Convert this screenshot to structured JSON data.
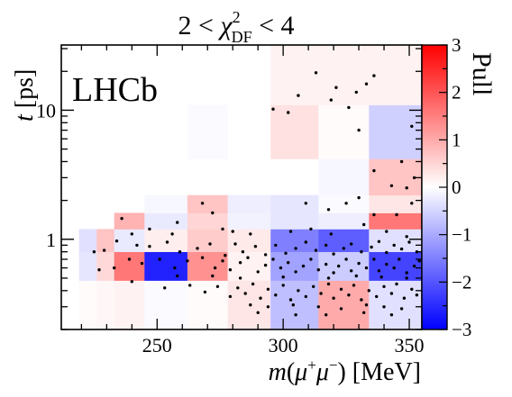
{
  "chart_data": {
    "type": "heatmap",
    "title_prefix": "2 < ",
    "title_chi": "χ",
    "title_sup": "2",
    "title_sub": "DF",
    "title_suffix": " < 4",
    "xlabel_m": "m",
    "xlabel_open": "(",
    "xlabel_mu1": "μ",
    "xlabel_plus": "+",
    "xlabel_mu2": "μ",
    "xlabel_minus": "−",
    "xlabel_rest": ") [MeV]",
    "ylabel_t": "t",
    "ylabel_rest": " [ps]",
    "colorbar_label": "Pull",
    "watermark": "LHCb",
    "xlim": [
      212,
      355
    ],
    "ylim_log": [
      0.2,
      32
    ],
    "xticks": [
      {
        "v": 250,
        "label": "250"
      },
      {
        "v": 300,
        "label": "300"
      },
      {
        "v": 350,
        "label": "350"
      }
    ],
    "yticks": [
      {
        "v": 1,
        "label": "1"
      },
      {
        "v": 10,
        "label": "10"
      }
    ],
    "colorbar_range": [
      -3,
      3
    ],
    "colorbar_ticks": [
      {
        "v": 3,
        "label": "3"
      },
      {
        "v": 2,
        "label": "2"
      },
      {
        "v": 1,
        "label": "1"
      },
      {
        "v": 0,
        "label": "0"
      },
      {
        "v": -1,
        "label": "−1"
      },
      {
        "v": -2,
        "label": "−2"
      },
      {
        "v": -3,
        "label": "−3"
      }
    ],
    "cells": [
      {
        "x0": 219,
        "x1": 226,
        "y0": 0.2,
        "y1": 0.48,
        "v": 0.05
      },
      {
        "x0": 226,
        "x1": 233,
        "y0": 0.2,
        "y1": 0.48,
        "v": 0.1
      },
      {
        "x0": 233,
        "x1": 245,
        "y0": 0.2,
        "y1": 0.48,
        "v": 0.15
      },
      {
        "x0": 245,
        "x1": 262,
        "y0": 0.2,
        "y1": 0.48,
        "v": -0.05
      },
      {
        "x0": 262,
        "x1": 278,
        "y0": 0.2,
        "y1": 0.48,
        "v": 0.05
      },
      {
        "x0": 278,
        "x1": 295,
        "y0": 0.2,
        "y1": 0.48,
        "v": 0.3
      },
      {
        "x0": 295,
        "x1": 314,
        "y0": 0.2,
        "y1": 0.48,
        "v": -0.75
      },
      {
        "x0": 314,
        "x1": 334,
        "y0": 0.2,
        "y1": 0.48,
        "v": 1.0
      },
      {
        "x0": 334,
        "x1": 355,
        "y0": 0.2,
        "y1": 0.48,
        "v": -0.35
      },
      {
        "x0": 219,
        "x1": 226,
        "y0": 0.48,
        "y1": 0.8,
        "v": -0.3
      },
      {
        "x0": 226,
        "x1": 233,
        "y0": 0.48,
        "y1": 0.8,
        "v": 0.45
      },
      {
        "x0": 233,
        "x1": 245,
        "y0": 0.48,
        "y1": 0.8,
        "v": 1.6
      },
      {
        "x0": 245,
        "x1": 262,
        "y0": 0.48,
        "y1": 0.8,
        "v": -2.6
      },
      {
        "x0": 262,
        "x1": 278,
        "y0": 0.48,
        "y1": 0.8,
        "v": 1.3
      },
      {
        "x0": 278,
        "x1": 295,
        "y0": 0.48,
        "y1": 0.8,
        "v": 0.15
      },
      {
        "x0": 295,
        "x1": 314,
        "y0": 0.48,
        "y1": 0.8,
        "v": -1.1
      },
      {
        "x0": 314,
        "x1": 334,
        "y0": 0.48,
        "y1": 0.8,
        "v": -0.6
      },
      {
        "x0": 334,
        "x1": 355,
        "y0": 0.48,
        "y1": 0.8,
        "v": -2.2
      },
      {
        "x0": 219,
        "x1": 226,
        "y0": 0.8,
        "y1": 1.2,
        "v": -0.35
      },
      {
        "x0": 226,
        "x1": 233,
        "y0": 0.8,
        "y1": 1.2,
        "v": 0.7
      },
      {
        "x0": 233,
        "x1": 245,
        "y0": 0.8,
        "y1": 1.2,
        "v": -0.25
      },
      {
        "x0": 245,
        "x1": 262,
        "y0": 0.8,
        "y1": 1.2,
        "v": 0.2
      },
      {
        "x0": 262,
        "x1": 278,
        "y0": 0.8,
        "y1": 1.2,
        "v": 0.6
      },
      {
        "x0": 278,
        "x1": 295,
        "y0": 0.8,
        "y1": 1.2,
        "v": 0.25
      },
      {
        "x0": 295,
        "x1": 314,
        "y0": 0.8,
        "y1": 1.2,
        "v": -1.5
      },
      {
        "x0": 314,
        "x1": 334,
        "y0": 0.8,
        "y1": 1.2,
        "v": -1.9
      },
      {
        "x0": 334,
        "x1": 355,
        "y0": 0.8,
        "y1": 1.2,
        "v": -0.35
      },
      {
        "x0": 233,
        "x1": 245,
        "y0": 1.2,
        "y1": 1.6,
        "v": 0.9
      },
      {
        "x0": 245,
        "x1": 262,
        "y0": 1.2,
        "y1": 1.6,
        "v": -0.25
      },
      {
        "x0": 262,
        "x1": 278,
        "y0": 1.2,
        "y1": 1.6,
        "v": 0.5
      },
      {
        "x0": 278,
        "x1": 295,
        "y0": 1.2,
        "y1": 1.6,
        "v": -0.15
      },
      {
        "x0": 295,
        "x1": 314,
        "y0": 1.2,
        "y1": 1.6,
        "v": -0.3
      },
      {
        "x0": 314,
        "x1": 334,
        "y0": 1.2,
        "y1": 1.6,
        "v": -0.2
      },
      {
        "x0": 334,
        "x1": 355,
        "y0": 1.2,
        "y1": 1.6,
        "v": 1.6
      },
      {
        "x0": 245,
        "x1": 262,
        "y0": 1.6,
        "y1": 2.2,
        "v": -0.1
      },
      {
        "x0": 262,
        "x1": 278,
        "y0": 1.6,
        "y1": 2.2,
        "v": 0.7
      },
      {
        "x0": 278,
        "x1": 295,
        "y0": 1.6,
        "y1": 2.2,
        "v": -0.2
      },
      {
        "x0": 295,
        "x1": 314,
        "y0": 1.6,
        "y1": 2.2,
        "v": -0.3
      },
      {
        "x0": 314,
        "x1": 334,
        "y0": 1.6,
        "y1": 2.2,
        "v": -0.05
      },
      {
        "x0": 334,
        "x1": 355,
        "y0": 1.6,
        "y1": 2.2,
        "v": 0.3
      },
      {
        "x0": 314,
        "x1": 334,
        "y0": 2.2,
        "y1": 4.2,
        "v": -0.1
      },
      {
        "x0": 334,
        "x1": 355,
        "y0": 2.2,
        "y1": 4.2,
        "v": 0.7
      },
      {
        "x0": 262,
        "x1": 278,
        "y0": 4.2,
        "y1": 11,
        "v": -0.05
      },
      {
        "x0": 295,
        "x1": 314,
        "y0": 4.2,
        "y1": 11,
        "v": 0.35
      },
      {
        "x0": 314,
        "x1": 334,
        "y0": 4.2,
        "y1": 11,
        "v": 0.05
      },
      {
        "x0": 334,
        "x1": 355,
        "y0": 4.2,
        "y1": 11,
        "v": -0.55
      },
      {
        "x0": 295,
        "x1": 355,
        "y0": 11,
        "y1": 32,
        "v": 0.15
      }
    ],
    "points": [
      [
        313,
        19.5
      ],
      [
        321,
        15.0
      ],
      [
        329,
        13.8
      ],
      [
        333,
        16.0
      ],
      [
        336,
        18.5
      ],
      [
        306,
        13.0
      ],
      [
        319,
        12.0
      ],
      [
        326,
        10.5
      ],
      [
        296,
        10.2
      ],
      [
        302,
        9.6
      ],
      [
        330,
        7.0
      ],
      [
        351,
        7.5
      ],
      [
        347,
        4.0
      ],
      [
        336,
        3.4
      ],
      [
        352,
        3.0
      ],
      [
        343,
        2.6
      ],
      [
        349,
        2.5
      ],
      [
        309,
        1.9
      ],
      [
        318,
        1.7
      ],
      [
        330,
        2.1
      ],
      [
        336,
        1.55
      ],
      [
        351,
        1.9
      ],
      [
        345,
        1.55
      ],
      [
        325,
        1.9
      ],
      [
        268,
        1.9
      ],
      [
        272,
        1.6
      ],
      [
        236,
        1.45
      ],
      [
        258,
        1.35
      ],
      [
        240,
        1.1
      ],
      [
        247,
        1.2
      ],
      [
        256,
        1.1
      ],
      [
        276,
        1.2
      ],
      [
        280,
        1.15
      ],
      [
        287,
        1.1
      ],
      [
        303,
        1.15
      ],
      [
        311,
        1.2
      ],
      [
        319,
        1.1
      ],
      [
        332,
        1.3
      ],
      [
        341,
        1.15
      ],
      [
        349,
        1.05
      ],
      [
        225,
        0.8
      ],
      [
        229,
        0.82
      ],
      [
        234,
        0.97
      ],
      [
        242,
        0.9
      ],
      [
        247,
        0.88
      ],
      [
        254,
        0.95
      ],
      [
        259,
        0.8
      ],
      [
        266,
        0.85
      ],
      [
        271,
        0.92
      ],
      [
        277,
        0.75
      ],
      [
        281,
        0.92
      ],
      [
        284,
        0.8
      ],
      [
        289,
        0.88
      ],
      [
        293,
        0.76
      ],
      [
        297,
        0.9
      ],
      [
        301,
        0.78
      ],
      [
        305,
        0.85
      ],
      [
        309,
        0.95
      ],
      [
        313,
        0.82
      ],
      [
        317,
        0.9
      ],
      [
        320,
        0.77
      ],
      [
        324,
        0.85
      ],
      [
        327,
        0.92
      ],
      [
        331,
        0.8
      ],
      [
        335,
        0.87
      ],
      [
        338,
        0.96
      ],
      [
        341,
        0.79
      ],
      [
        344,
        0.9
      ],
      [
        347,
        0.84
      ],
      [
        350,
        0.95
      ],
      [
        353,
        0.8
      ],
      [
        227,
        0.58
      ],
      [
        233,
        0.6
      ],
      [
        239,
        0.7
      ],
      [
        244,
        0.65
      ],
      [
        251,
        0.7
      ],
      [
        257,
        0.6
      ],
      [
        262,
        0.68
      ],
      [
        268,
        0.72
      ],
      [
        273,
        0.6
      ],
      [
        276,
        0.68
      ],
      [
        279,
        0.58
      ],
      [
        283,
        0.66
      ],
      [
        286,
        0.72
      ],
      [
        290,
        0.56
      ],
      [
        293,
        0.63
      ],
      [
        296,
        0.7
      ],
      [
        299,
        0.6
      ],
      [
        302,
        0.66
      ],
      [
        305,
        0.56
      ],
      [
        308,
        0.62
      ],
      [
        311,
        0.7
      ],
      [
        314,
        0.58
      ],
      [
        317,
        0.64
      ],
      [
        320,
        0.55
      ],
      [
        322,
        0.62
      ],
      [
        325,
        0.7
      ],
      [
        327,
        0.57
      ],
      [
        330,
        0.65
      ],
      [
        333,
        0.6
      ],
      [
        336,
        0.7
      ],
      [
        338,
        0.57
      ],
      [
        341,
        0.64
      ],
      [
        344,
        0.6
      ],
      [
        346,
        0.7
      ],
      [
        349,
        0.55
      ],
      [
        352,
        0.62
      ],
      [
        354,
        0.68
      ],
      [
        240,
        0.47
      ],
      [
        253,
        0.42
      ],
      [
        263,
        0.44
      ],
      [
        269,
        0.39
      ],
      [
        274,
        0.43
      ],
      [
        279,
        0.36
      ],
      [
        282,
        0.42
      ],
      [
        285,
        0.38
      ],
      [
        288,
        0.45
      ],
      [
        291,
        0.35
      ],
      [
        294,
        0.41
      ],
      [
        297,
        0.37
      ],
      [
        300,
        0.44
      ],
      [
        303,
        0.34
      ],
      [
        306,
        0.4
      ],
      [
        309,
        0.36
      ],
      [
        312,
        0.43
      ],
      [
        315,
        0.38
      ],
      [
        318,
        0.45
      ],
      [
        320,
        0.35
      ],
      [
        323,
        0.41
      ],
      [
        326,
        0.37
      ],
      [
        328,
        0.44
      ],
      [
        331,
        0.34
      ],
      [
        334,
        0.4
      ],
      [
        337,
        0.36
      ],
      [
        340,
        0.43
      ],
      [
        343,
        0.38
      ],
      [
        345,
        0.45
      ],
      [
        348,
        0.35
      ],
      [
        351,
        0.41
      ],
      [
        353,
        0.37
      ],
      [
        287,
        0.31
      ],
      [
        294,
        0.3
      ],
      [
        304,
        0.31
      ],
      [
        314,
        0.3
      ],
      [
        323,
        0.29
      ],
      [
        333,
        0.31
      ],
      [
        340,
        0.3
      ],
      [
        347,
        0.29
      ],
      [
        272,
        0.52
      ],
      [
        283,
        0.5
      ],
      [
        300,
        0.51
      ],
      [
        318,
        0.5
      ],
      [
        329,
        0.52
      ],
      [
        339,
        0.51
      ],
      [
        349,
        0.5
      ],
      [
        258,
        0.52
      ],
      [
        290,
        0.27
      ],
      [
        317,
        0.26
      ],
      [
        332,
        0.27
      ],
      [
        343,
        0.26
      ],
      [
        305,
        0.26
      ]
    ]
  }
}
